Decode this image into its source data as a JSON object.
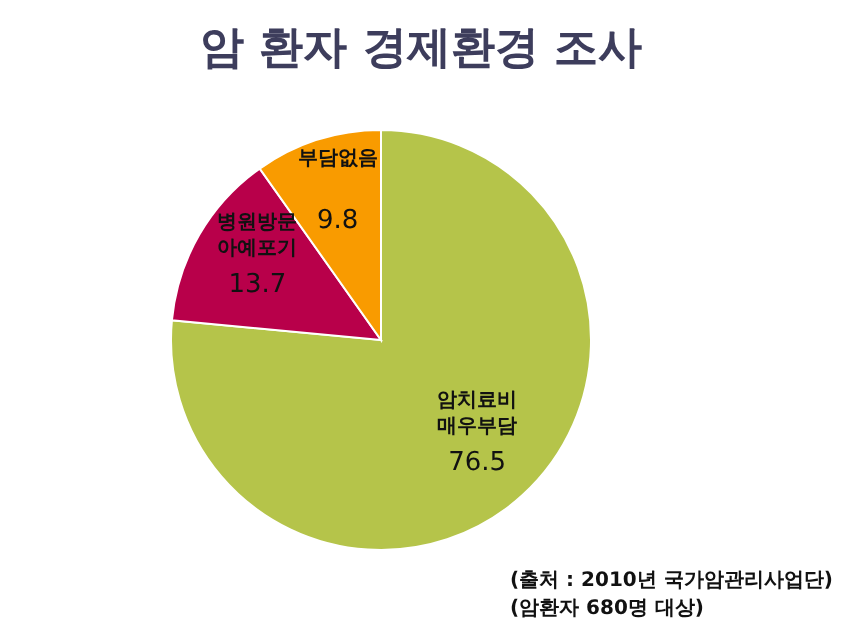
{
  "chart_data": {
    "type": "pie",
    "title": "암 환자 경제환경 조사",
    "categories": [
      "암치료비 매우부담",
      "병원방문 아예포기",
      "부담없음"
    ],
    "values": [
      76.5,
      13.7,
      9.8
    ],
    "colors": [
      "#b5c44a",
      "#b8004a",
      "#f99b00"
    ],
    "data_labels": true,
    "annotations": [
      "(출처 : 2010년 국가암관리사업단)",
      "(암환자 680명 대상)"
    ]
  }
}
